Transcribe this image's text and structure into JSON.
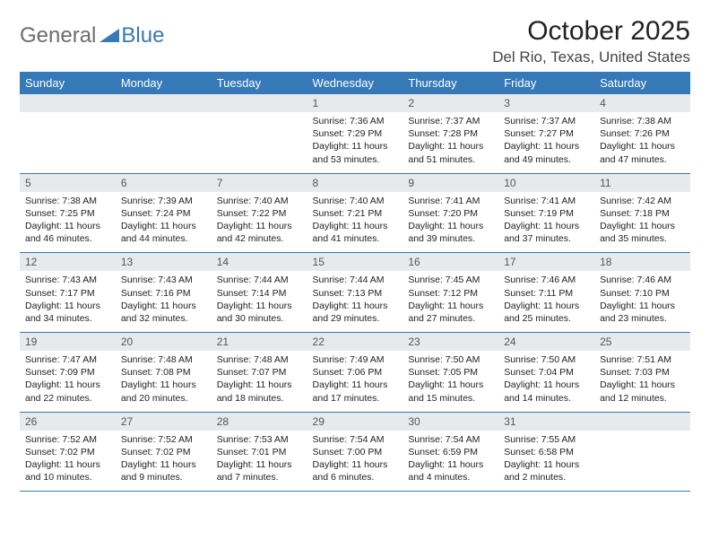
{
  "logo": {
    "text1": "General",
    "text2": "Blue"
  },
  "title": "October 2025",
  "location": "Del Rio, Texas, United States",
  "colors": {
    "accent": "#3679b8",
    "dayHeaderBg": "#e7e9eb",
    "text": "#222222",
    "logoGray": "#6c6c6c",
    "background": "#ffffff"
  },
  "typography": {
    "titleSize": 30,
    "locationSize": 17,
    "headerSize": 13,
    "bodySize": 10.5
  },
  "weekdays": [
    "Sunday",
    "Monday",
    "Tuesday",
    "Wednesday",
    "Thursday",
    "Friday",
    "Saturday"
  ],
  "weeks": [
    [
      null,
      null,
      null,
      {
        "n": "1",
        "sr": "7:36 AM",
        "ss": "7:29 PM",
        "dl": "11 hours and 53 minutes."
      },
      {
        "n": "2",
        "sr": "7:37 AM",
        "ss": "7:28 PM",
        "dl": "11 hours and 51 minutes."
      },
      {
        "n": "3",
        "sr": "7:37 AM",
        "ss": "7:27 PM",
        "dl": "11 hours and 49 minutes."
      },
      {
        "n": "4",
        "sr": "7:38 AM",
        "ss": "7:26 PM",
        "dl": "11 hours and 47 minutes."
      }
    ],
    [
      {
        "n": "5",
        "sr": "7:38 AM",
        "ss": "7:25 PM",
        "dl": "11 hours and 46 minutes."
      },
      {
        "n": "6",
        "sr": "7:39 AM",
        "ss": "7:24 PM",
        "dl": "11 hours and 44 minutes."
      },
      {
        "n": "7",
        "sr": "7:40 AM",
        "ss": "7:22 PM",
        "dl": "11 hours and 42 minutes."
      },
      {
        "n": "8",
        "sr": "7:40 AM",
        "ss": "7:21 PM",
        "dl": "11 hours and 41 minutes."
      },
      {
        "n": "9",
        "sr": "7:41 AM",
        "ss": "7:20 PM",
        "dl": "11 hours and 39 minutes."
      },
      {
        "n": "10",
        "sr": "7:41 AM",
        "ss": "7:19 PM",
        "dl": "11 hours and 37 minutes."
      },
      {
        "n": "11",
        "sr": "7:42 AM",
        "ss": "7:18 PM",
        "dl": "11 hours and 35 minutes."
      }
    ],
    [
      {
        "n": "12",
        "sr": "7:43 AM",
        "ss": "7:17 PM",
        "dl": "11 hours and 34 minutes."
      },
      {
        "n": "13",
        "sr": "7:43 AM",
        "ss": "7:16 PM",
        "dl": "11 hours and 32 minutes."
      },
      {
        "n": "14",
        "sr": "7:44 AM",
        "ss": "7:14 PM",
        "dl": "11 hours and 30 minutes."
      },
      {
        "n": "15",
        "sr": "7:44 AM",
        "ss": "7:13 PM",
        "dl": "11 hours and 29 minutes."
      },
      {
        "n": "16",
        "sr": "7:45 AM",
        "ss": "7:12 PM",
        "dl": "11 hours and 27 minutes."
      },
      {
        "n": "17",
        "sr": "7:46 AM",
        "ss": "7:11 PM",
        "dl": "11 hours and 25 minutes."
      },
      {
        "n": "18",
        "sr": "7:46 AM",
        "ss": "7:10 PM",
        "dl": "11 hours and 23 minutes."
      }
    ],
    [
      {
        "n": "19",
        "sr": "7:47 AM",
        "ss": "7:09 PM",
        "dl": "11 hours and 22 minutes."
      },
      {
        "n": "20",
        "sr": "7:48 AM",
        "ss": "7:08 PM",
        "dl": "11 hours and 20 minutes."
      },
      {
        "n": "21",
        "sr": "7:48 AM",
        "ss": "7:07 PM",
        "dl": "11 hours and 18 minutes."
      },
      {
        "n": "22",
        "sr": "7:49 AM",
        "ss": "7:06 PM",
        "dl": "11 hours and 17 minutes."
      },
      {
        "n": "23",
        "sr": "7:50 AM",
        "ss": "7:05 PM",
        "dl": "11 hours and 15 minutes."
      },
      {
        "n": "24",
        "sr": "7:50 AM",
        "ss": "7:04 PM",
        "dl": "11 hours and 14 minutes."
      },
      {
        "n": "25",
        "sr": "7:51 AM",
        "ss": "7:03 PM",
        "dl": "11 hours and 12 minutes."
      }
    ],
    [
      {
        "n": "26",
        "sr": "7:52 AM",
        "ss": "7:02 PM",
        "dl": "11 hours and 10 minutes."
      },
      {
        "n": "27",
        "sr": "7:52 AM",
        "ss": "7:02 PM",
        "dl": "11 hours and 9 minutes."
      },
      {
        "n": "28",
        "sr": "7:53 AM",
        "ss": "7:01 PM",
        "dl": "11 hours and 7 minutes."
      },
      {
        "n": "29",
        "sr": "7:54 AM",
        "ss": "7:00 PM",
        "dl": "11 hours and 6 minutes."
      },
      {
        "n": "30",
        "sr": "7:54 AM",
        "ss": "6:59 PM",
        "dl": "11 hours and 4 minutes."
      },
      {
        "n": "31",
        "sr": "7:55 AM",
        "ss": "6:58 PM",
        "dl": "11 hours and 2 minutes."
      },
      null
    ]
  ],
  "labels": {
    "sunrise": "Sunrise:",
    "sunset": "Sunset:",
    "daylight": "Daylight:"
  }
}
